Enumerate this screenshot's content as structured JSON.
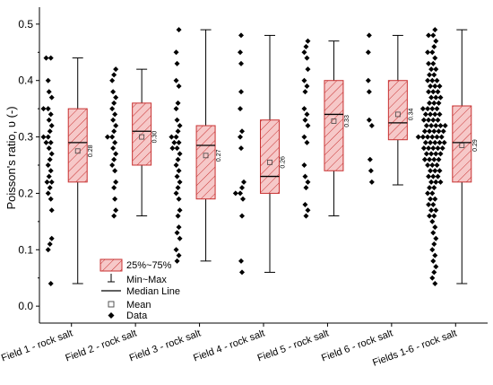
{
  "chart_data": {
    "type": "box",
    "ylabel": "Poisson's ratio, υ (-)",
    "ylim": [
      -0.03,
      0.53
    ],
    "yticks": [
      "0.0",
      "0.1",
      "0.2",
      "0.3",
      "0.4",
      "0.5"
    ],
    "ytick_values": [
      0.0,
      0.1,
      0.2,
      0.3,
      0.4,
      0.5
    ],
    "categories": [
      "Field 1 - rock salt",
      "Field 2 - rock salt",
      "Field 3 - rock salt",
      "Field 4 - rock salt",
      "Field 5 - rock salt",
      "Field 6 - rock salt",
      "Fields 1-6 - rock salt"
    ],
    "boxes": [
      {
        "min": 0.04,
        "q1": 0.22,
        "median": 0.29,
        "q3": 0.35,
        "max": 0.44,
        "mean": 0.275,
        "mean_label": "0.28"
      },
      {
        "min": 0.16,
        "q1": 0.25,
        "median": 0.31,
        "q3": 0.36,
        "max": 0.42,
        "mean": 0.3,
        "mean_label": "0.30"
      },
      {
        "min": 0.08,
        "q1": 0.19,
        "median": 0.285,
        "q3": 0.32,
        "max": 0.49,
        "mean": 0.267,
        "mean_label": "0.27"
      },
      {
        "min": 0.06,
        "q1": 0.2,
        "median": 0.23,
        "q3": 0.33,
        "max": 0.48,
        "mean": 0.255,
        "mean_label": "0.26"
      },
      {
        "min": 0.16,
        "q1": 0.24,
        "median": 0.34,
        "q3": 0.4,
        "max": 0.47,
        "mean": 0.328,
        "mean_label": "0.33"
      },
      {
        "min": 0.215,
        "q1": 0.295,
        "median": 0.325,
        "q3": 0.4,
        "max": 0.48,
        "mean": 0.34,
        "mean_label": "0.34"
      },
      {
        "min": 0.04,
        "q1": 0.22,
        "median": 0.29,
        "q3": 0.355,
        "max": 0.49,
        "mean": 0.285,
        "mean_label": "0.29"
      }
    ],
    "data_points": [
      [
        0.44,
        0.44,
        0.38,
        0.4,
        0.37,
        0.35,
        0.34,
        0.35,
        0.33,
        0.32,
        0.31,
        0.3,
        0.3,
        0.29,
        0.29,
        0.28,
        0.27,
        0.26,
        0.25,
        0.24,
        0.23,
        0.22,
        0.22,
        0.21,
        0.2,
        0.19,
        0.17,
        0.12,
        0.11,
        0.1,
        0.04
      ],
      [
        0.42,
        0.41,
        0.4,
        0.38,
        0.37,
        0.36,
        0.35,
        0.34,
        0.33,
        0.32,
        0.31,
        0.3,
        0.3,
        0.29,
        0.28,
        0.27,
        0.26,
        0.25,
        0.24,
        0.22,
        0.21,
        0.19,
        0.17,
        0.16
      ],
      [
        0.49,
        0.45,
        0.43,
        0.4,
        0.39,
        0.36,
        0.35,
        0.33,
        0.32,
        0.31,
        0.3,
        0.3,
        0.29,
        0.29,
        0.28,
        0.28,
        0.27,
        0.26,
        0.25,
        0.24,
        0.23,
        0.22,
        0.21,
        0.2,
        0.19,
        0.17,
        0.16,
        0.14,
        0.13,
        0.12,
        0.1,
        0.09,
        0.08
      ],
      [
        0.48,
        0.45,
        0.43,
        0.38,
        0.35,
        0.31,
        0.3,
        0.28,
        0.22,
        0.21,
        0.2,
        0.2,
        0.19,
        0.16,
        0.08,
        0.06
      ],
      [
        0.47,
        0.46,
        0.45,
        0.44,
        0.42,
        0.4,
        0.39,
        0.38,
        0.35,
        0.34,
        0.33,
        0.32,
        0.3,
        0.29,
        0.25,
        0.23,
        0.22,
        0.21,
        0.18,
        0.17,
        0.16
      ],
      [
        0.48,
        0.45,
        0.4,
        0.38,
        0.33,
        0.32,
        0.26,
        0.24,
        0.22
      ],
      [
        0.49,
        0.48,
        0.48,
        0.47,
        0.46,
        0.45,
        0.45,
        0.44,
        0.43,
        0.43,
        0.42,
        0.42,
        0.41,
        0.41,
        0.4,
        0.4,
        0.4,
        0.39,
        0.39,
        0.39,
        0.38,
        0.38,
        0.38,
        0.37,
        0.37,
        0.37,
        0.36,
        0.36,
        0.36,
        0.35,
        0.35,
        0.35,
        0.35,
        0.34,
        0.34,
        0.34,
        0.34,
        0.33,
        0.33,
        0.33,
        0.33,
        0.32,
        0.32,
        0.32,
        0.32,
        0.32,
        0.31,
        0.31,
        0.31,
        0.31,
        0.31,
        0.3,
        0.3,
        0.3,
        0.3,
        0.3,
        0.3,
        0.29,
        0.29,
        0.29,
        0.29,
        0.29,
        0.28,
        0.28,
        0.28,
        0.28,
        0.28,
        0.27,
        0.27,
        0.27,
        0.27,
        0.26,
        0.26,
        0.26,
        0.26,
        0.25,
        0.25,
        0.25,
        0.24,
        0.24,
        0.24,
        0.23,
        0.23,
        0.23,
        0.22,
        0.22,
        0.22,
        0.21,
        0.21,
        0.2,
        0.2,
        0.19,
        0.19,
        0.18,
        0.18,
        0.17,
        0.17,
        0.16,
        0.16,
        0.15,
        0.14,
        0.13,
        0.12,
        0.11,
        0.1,
        0.09,
        0.08,
        0.07,
        0.06,
        0.05,
        0.04
      ]
    ],
    "legend": {
      "placement": "bottom-left",
      "items": [
        "25%~75%",
        "Min~Max",
        "Median Line",
        "Mean",
        "Data"
      ]
    },
    "colors": {
      "box_fill": "#f6c8c8",
      "box_stroke": "#c83232",
      "hatch": "#c83232",
      "axis": "#000000"
    },
    "grid": false
  }
}
